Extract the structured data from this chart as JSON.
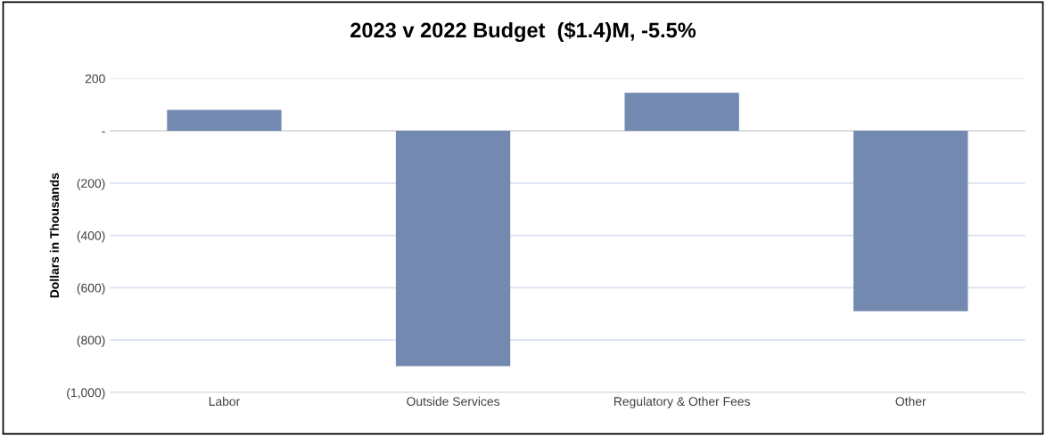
{
  "chart_data": {
    "type": "bar",
    "title": "2023 v 2022 Budget  ($1.4)M, -5.5%",
    "ylabel": "Dollars in Thousands",
    "categories": [
      "Labor",
      "Outside Services",
      "Regulatory & Other Fees",
      "Other"
    ],
    "values": [
      80,
      -900,
      145,
      -690
    ],
    "color": "#7389b0",
    "ylim": [
      -1000,
      200
    ],
    "yticks": [
      {
        "value": -1000,
        "label": "(1,000)"
      },
      {
        "value": -800,
        "label": "(800)"
      },
      {
        "value": -600,
        "label": "(600)"
      },
      {
        "value": -400,
        "label": "(400)"
      },
      {
        "value": -200,
        "label": "(200)"
      },
      {
        "value": 0,
        "label": "-"
      },
      200
    ],
    "grid": "y"
  }
}
